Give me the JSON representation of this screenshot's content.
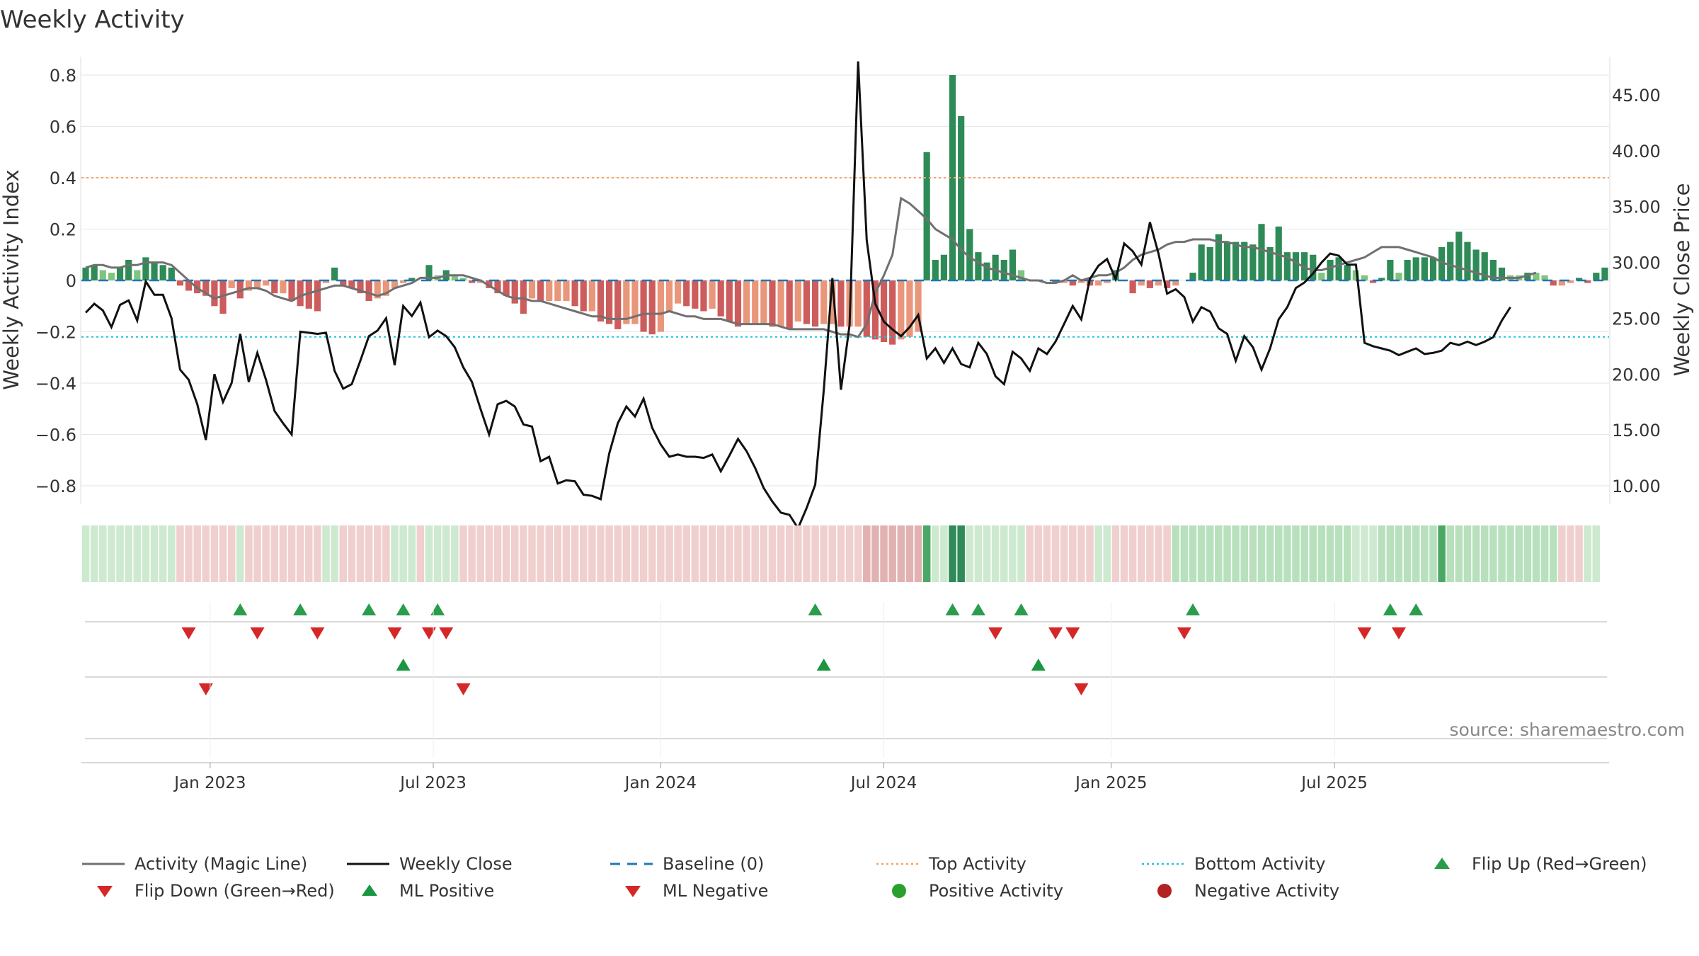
{
  "chart_data": {
    "type": "bar",
    "title": "Weekly Activity",
    "source": "source: sharemaestro.com",
    "left_axis": {
      "label": "Weekly Activity Index",
      "range": [
        -0.88,
        0.82
      ],
      "ticks": [
        "0.8",
        "0.6",
        "0.4",
        "0.2",
        "0",
        "−0.2",
        "−0.4",
        "−0.6",
        "−0.8"
      ],
      "tick_values": [
        0.8,
        0.6,
        0.4,
        0.2,
        0,
        -0.2,
        -0.4,
        -0.6,
        -0.8
      ]
    },
    "right_axis": {
      "label": "Weekly Close Price",
      "range": [
        8.5,
        48
      ],
      "ticks": [
        "45.00",
        "40.00",
        "35.00",
        "30.00",
        "25.00",
        "20.00",
        "15.00",
        "10.00"
      ],
      "tick_values": [
        45,
        40,
        35,
        30,
        25,
        20,
        15,
        10
      ]
    },
    "x_axis": {
      "ticks": [
        "Jan 2023",
        "Jul 2023",
        "Jan 2024",
        "Jul 2024",
        "Jan 2025",
        "Jul 2025"
      ],
      "tick_weeks": [
        14.5,
        40.5,
        67,
        93,
        119.5,
        145.5
      ]
    },
    "reference_lines": {
      "baseline": 0,
      "top_activity": 0.4,
      "bottom_activity": -0.22
    },
    "activity_index": [
      0.05,
      0.06,
      0.04,
      0.03,
      0.05,
      0.08,
      0.04,
      0.09,
      0.07,
      0.06,
      0.05,
      -0.02,
      -0.04,
      -0.05,
      -0.06,
      -0.1,
      -0.13,
      -0.03,
      -0.07,
      -0.04,
      -0.03,
      -0.02,
      -0.05,
      -0.05,
      -0.08,
      -0.1,
      -0.11,
      -0.12,
      -0.01,
      0.05,
      -0.02,
      -0.03,
      -0.05,
      -0.08,
      -0.07,
      -0.06,
      -0.03,
      -0.01,
      0.01,
      0.0,
      0.06,
      0.02,
      0.04,
      0.02,
      0.01,
      -0.01,
      -0.01,
      -0.03,
      -0.05,
      -0.06,
      -0.09,
      -0.13,
      -0.07,
      -0.08,
      -0.08,
      -0.08,
      -0.08,
      -0.1,
      -0.12,
      -0.12,
      -0.16,
      -0.17,
      -0.19,
      -0.17,
      -0.17,
      -0.2,
      -0.21,
      -0.2,
      -0.12,
      -0.09,
      -0.1,
      -0.11,
      -0.12,
      -0.11,
      -0.14,
      -0.16,
      -0.18,
      -0.17,
      -0.17,
      -0.17,
      -0.18,
      -0.18,
      -0.19,
      -0.16,
      -0.17,
      -0.18,
      -0.17,
      -0.17,
      -0.18,
      -0.18,
      -0.18,
      -0.22,
      -0.23,
      -0.24,
      -0.25,
      -0.23,
      -0.22,
      -0.2,
      0.5,
      0.08,
      0.1,
      0.8,
      0.64,
      0.2,
      0.11,
      0.07,
      0.1,
      0.08,
      0.12,
      0.04,
      0.0,
      0.0,
      0.0,
      -0.01,
      -0.01,
      -0.02,
      -0.01,
      -0.02,
      -0.02,
      -0.01,
      0.04,
      0.0,
      -0.05,
      -0.02,
      -0.03,
      -0.02,
      -0.03,
      -0.02,
      0.0,
      0.03,
      0.14,
      0.13,
      0.18,
      0.15,
      0.15,
      0.15,
      0.14,
      0.22,
      0.13,
      0.21,
      0.11,
      0.11,
      0.11,
      0.1,
      0.03,
      0.08,
      0.09,
      0.06,
      0.04,
      0.02,
      -0.01,
      0.01,
      0.08,
      0.03,
      0.08,
      0.09,
      0.09,
      0.09,
      0.13,
      0.15,
      0.19,
      0.15,
      0.12,
      0.11,
      0.08,
      0.05,
      0.02,
      0.02,
      0.03,
      0.03,
      0.02,
      -0.02,
      -0.02,
      -0.01,
      0.01,
      -0.01,
      0.03,
      0.05
    ],
    "weekly_close": [
      25.5,
      26.3,
      25.7,
      24.2,
      26.2,
      26.6,
      24.8,
      28.3,
      27.1,
      27.1,
      25.0,
      20.4,
      19.5,
      17.3,
      14.1,
      20.0,
      17.5,
      19.2,
      23.6,
      19.3,
      21.9,
      19.5,
      16.7,
      15.6,
      14.6,
      23.8,
      23.7,
      23.6,
      23.7,
      20.3,
      18.7,
      19.1,
      21.2,
      23.4,
      23.9,
      25.0,
      20.8,
      26.1,
      25.2,
      26.4,
      23.3,
      23.9,
      23.4,
      22.4,
      20.6,
      19.3,
      16.9,
      14.6,
      17.3,
      17.6,
      17.1,
      15.5,
      15.3,
      12.2,
      12.6,
      10.2,
      10.5,
      10.4,
      9.2,
      9.1,
      8.8,
      12.9,
      15.6,
      17.1,
      16.2,
      17.8,
      15.2,
      13.7,
      12.6,
      12.8,
      12.6,
      12.6,
      12.5,
      12.8,
      11.3,
      12.7,
      14.2,
      13.1,
      11.6,
      9.8,
      8.6,
      7.6,
      7.4,
      6.2,
      8.0,
      10.1,
      18.6,
      28.6,
      18.6,
      24.4,
      48.0,
      32.0,
      26.3,
      24.7,
      24.0,
      23.4,
      24.2,
      25.3,
      21.4,
      22.3,
      21.0,
      22.3,
      20.9,
      20.6,
      22.8,
      21.8,
      19.8,
      19.1,
      22.0,
      21.4,
      20.3,
      22.3,
      21.8,
      22.9,
      24.5,
      26.1,
      24.9,
      28.5,
      29.7,
      30.3,
      28.5,
      31.7,
      31.0,
      29.8,
      33.6,
      30.8,
      27.2,
      27.6,
      26.9,
      24.7,
      26.0,
      25.6,
      24.1,
      23.6,
      21.2,
      23.4,
      22.4,
      20.4,
      22.3,
      24.9,
      26.0,
      27.7,
      28.2,
      29.0,
      30.0,
      30.8,
      30.6,
      29.8,
      29.8,
      22.8,
      22.5,
      22.3,
      22.1,
      21.7,
      22.0,
      22.3,
      21.8,
      21.9,
      22.1,
      22.8,
      22.6,
      22.9,
      22.6,
      22.9,
      23.3,
      24.8,
      26.0
    ],
    "magic_line": [
      0.05,
      0.06,
      0.06,
      0.05,
      0.05,
      0.06,
      0.06,
      0.07,
      0.07,
      0.07,
      0.06,
      0.03,
      0.0,
      -0.03,
      -0.05,
      -0.07,
      -0.06,
      -0.05,
      -0.04,
      -0.03,
      -0.03,
      -0.04,
      -0.06,
      -0.07,
      -0.08,
      -0.06,
      -0.05,
      -0.04,
      -0.03,
      -0.02,
      -0.02,
      -0.03,
      -0.04,
      -0.05,
      -0.06,
      -0.05,
      -0.03,
      -0.02,
      -0.01,
      0.01,
      0.01,
      0.01,
      0.02,
      0.02,
      0.02,
      0.01,
      0.0,
      -0.02,
      -0.04,
      -0.06,
      -0.07,
      -0.07,
      -0.08,
      -0.08,
      -0.09,
      -0.1,
      -0.11,
      -0.12,
      -0.13,
      -0.14,
      -0.14,
      -0.15,
      -0.15,
      -0.15,
      -0.14,
      -0.13,
      -0.13,
      -0.13,
      -0.12,
      -0.13,
      -0.14,
      -0.14,
      -0.15,
      -0.15,
      -0.15,
      -0.16,
      -0.17,
      -0.17,
      -0.17,
      -0.17,
      -0.17,
      -0.18,
      -0.19,
      -0.19,
      -0.19,
      -0.19,
      -0.19,
      -0.2,
      -0.21,
      -0.21,
      -0.22,
      -0.17,
      -0.05,
      0.02,
      0.1,
      0.32,
      0.3,
      0.27,
      0.24,
      0.2,
      0.18,
      0.16,
      0.12,
      0.09,
      0.07,
      0.05,
      0.04,
      0.03,
      0.02,
      0.01,
      0.0,
      0.0,
      -0.01,
      -0.01,
      0.0,
      0.02,
      0.0,
      0.01,
      0.02,
      0.02,
      0.03,
      0.05,
      0.08,
      0.1,
      0.11,
      0.12,
      0.14,
      0.15,
      0.15,
      0.16,
      0.16,
      0.16,
      0.15,
      0.15,
      0.14,
      0.13,
      0.13,
      0.12,
      0.11,
      0.1,
      0.09,
      0.07,
      0.05,
      0.04,
      0.04,
      0.05,
      0.06,
      0.07,
      0.08,
      0.09,
      0.11,
      0.13,
      0.13,
      0.13,
      0.12,
      0.11,
      0.1,
      0.09,
      0.07,
      0.06,
      0.05,
      0.04,
      0.03,
      0.02,
      0.01,
      0.01,
      0.01,
      0.01,
      0.02,
      0.03
    ],
    "heat_strip_levels": [
      1,
      1,
      1,
      1,
      1,
      1,
      1,
      1,
      1,
      1,
      1,
      -1,
      -1,
      -1,
      -1,
      -1,
      -1,
      -1,
      1,
      -1,
      -1,
      -1,
      -1,
      -1,
      -1,
      -1,
      -1,
      -1,
      1,
      1,
      -1,
      -1,
      -1,
      -1,
      -1,
      -1,
      1,
      1,
      1,
      -1,
      1,
      1,
      1,
      1,
      -1,
      -1,
      -1,
      -1,
      -1,
      -1,
      -1,
      -1,
      -1,
      -1,
      -1,
      -1,
      -1,
      -1,
      -1,
      -1,
      -1,
      -1,
      -1,
      -1,
      -1,
      -1,
      -1,
      -1,
      -1,
      -1,
      -1,
      -1,
      -1,
      -1,
      -1,
      -1,
      -1,
      -1,
      -1,
      -1,
      -1,
      -1,
      -1,
      -1,
      -1,
      -1,
      -1,
      -1,
      -1,
      -1,
      -1,
      -2,
      -2,
      -2,
      -2,
      -2,
      -2,
      -2,
      3,
      1,
      1,
      4,
      4,
      1,
      1,
      1,
      1,
      1,
      1,
      1,
      -1,
      -1,
      -1,
      -1,
      -1,
      -1,
      -1,
      -1,
      1,
      1,
      -1,
      -1,
      -1,
      -1,
      -1,
      -1,
      -1,
      2,
      2,
      2,
      2,
      2,
      2,
      2,
      2,
      2,
      2,
      2,
      2,
      2,
      2,
      2,
      2,
      2,
      2,
      2,
      2,
      2,
      1,
      1,
      1,
      2,
      2,
      2,
      2,
      2,
      2,
      2,
      3,
      2,
      2,
      2,
      2,
      2,
      2,
      2,
      2,
      2,
      2,
      2,
      2,
      2,
      -1,
      -1,
      -1,
      1,
      1
    ],
    "flip_up_weeks": [
      18,
      25,
      33,
      37,
      41,
      85,
      101,
      104,
      109,
      129,
      152,
      155
    ],
    "flip_down_weeks": [
      12,
      20,
      27,
      36,
      40,
      42,
      106,
      113,
      115,
      128,
      149,
      153
    ],
    "ml_positive_weeks": [
      37,
      86,
      111
    ],
    "ml_negative_weeks": [
      14,
      44,
      116
    ]
  },
  "legend": [
    {
      "key": "magic",
      "label": "Activity (Magic Line)"
    },
    {
      "key": "close",
      "label": "Weekly Close"
    },
    {
      "key": "baseline",
      "label": "Baseline (0)"
    },
    {
      "key": "top",
      "label": "Top Activity"
    },
    {
      "key": "bottom",
      "label": "Bottom Activity"
    },
    {
      "key": "flipup",
      "label": "Flip Up (Red→Green)"
    },
    {
      "key": "flipdown",
      "label": "Flip Down (Green→Red)"
    },
    {
      "key": "mlpos",
      "label": "ML Positive"
    },
    {
      "key": "mlneg",
      "label": "ML Negative"
    },
    {
      "key": "posact",
      "label": "Positive Activity"
    },
    {
      "key": "negact",
      "label": "Negative Activity"
    }
  ],
  "colors": {
    "pos_strong": "#2e8b57",
    "pos_weak": "#7fc47f",
    "neg_strong": "#cd5c5c",
    "neg_weak": "#e9967a",
    "magic": "#707070",
    "close": "#111111",
    "baseline": "#1f77b4",
    "top": "#f4a460",
    "bottom": "#22c3d6",
    "flip_up": "#2a9d4b",
    "flip_down": "#d62728",
    "ml_pos": "#1a9641",
    "ml_neg": "#d62728",
    "pos_dot": "#2ca02c",
    "neg_dot": "#b22222"
  }
}
